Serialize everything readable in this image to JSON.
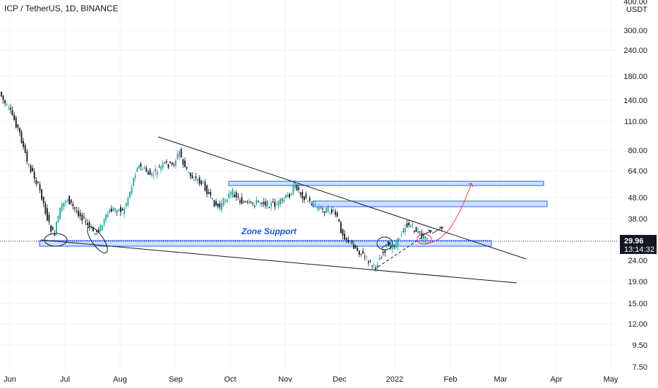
{
  "header": {
    "title": "ICP / TetherUS, 1D, BINANCE"
  },
  "chart_data": {
    "type": "candlestick",
    "scale": "log",
    "currency": "USDT",
    "y_ticks": [
      "400.00",
      "300.00",
      "240.00",
      "180.00",
      "140.00",
      "110.00",
      "80.00",
      "64.00",
      "48.00",
      "38.00",
      "24.00",
      "19.00",
      "15.00",
      "12.00",
      "9.50",
      "7.50"
    ],
    "x_ticks": [
      "Jun",
      "Jul",
      "Aug",
      "Sep",
      "Oct",
      "Nov",
      "Dec",
      "2022",
      "Feb",
      "Mar",
      "Apr",
      "May"
    ],
    "last_price": "29.96",
    "countdown": "13:14:32",
    "annotation": "Zone Support",
    "colors": {
      "up": "#26a69a",
      "down": "#131722",
      "zone_fill": "#cfe0fb",
      "zone_stroke": "#2962ff",
      "annotation": "#1e53e5",
      "projection": "#f23645",
      "price_label": "#131722"
    }
  }
}
